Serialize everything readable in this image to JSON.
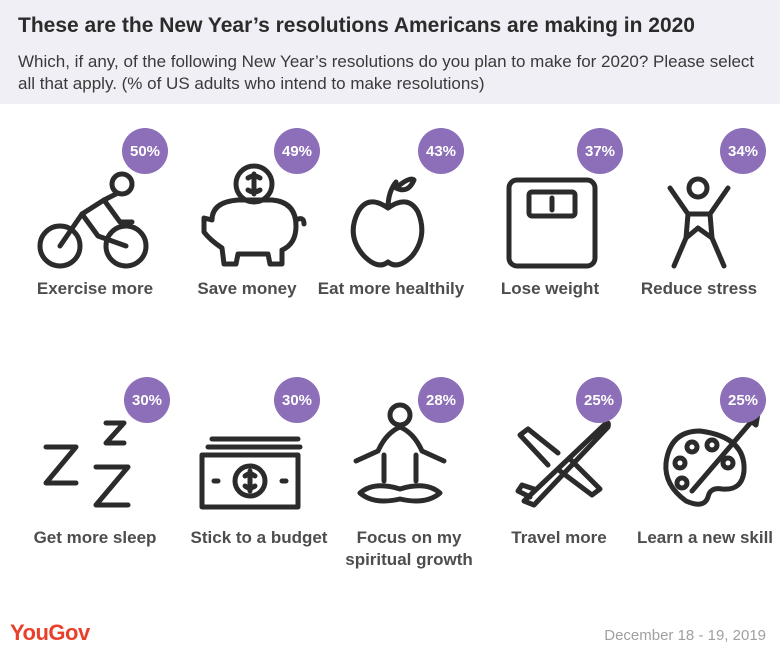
{
  "header": {
    "title": "These are the New Year’s resolutions Americans are making in 2020",
    "subtitle": "Which, if any, of the following New Year’s resolutions do you plan to make for 2020? Please select all that apply. (% of US adults who intend to make resolutions)"
  },
  "chart_data": {
    "type": "bar",
    "categories": [
      "Exercise more",
      "Save money",
      "Eat more healthily",
      "Lose weight",
      "Reduce stress",
      "Get more sleep",
      "Stick to a budget",
      "Focus on my spiritual growth",
      "Travel more",
      "Learn a new skill"
    ],
    "values": [
      50,
      49,
      43,
      37,
      34,
      30,
      30,
      28,
      25,
      25
    ],
    "value_labels": [
      "50%",
      "49%",
      "43%",
      "37%",
      "34%",
      "30%",
      "30%",
      "28%",
      "25%",
      "25%"
    ],
    "icons": [
      "bicycle-icon",
      "piggy-bank-icon",
      "apple-icon",
      "scale-icon",
      "stretch-person-icon",
      "sleep-icon",
      "money-icon",
      "meditation-icon",
      "airplane-icon",
      "palette-icon"
    ],
    "badge_color": "#8c6fb8"
  },
  "footer": {
    "brand": "YouGov",
    "date": "December 18 - 19, 2019"
  },
  "colors": {
    "header_bg": "#f0eff5",
    "brand": "#e8402a",
    "icon": "#2b2b2b"
  }
}
